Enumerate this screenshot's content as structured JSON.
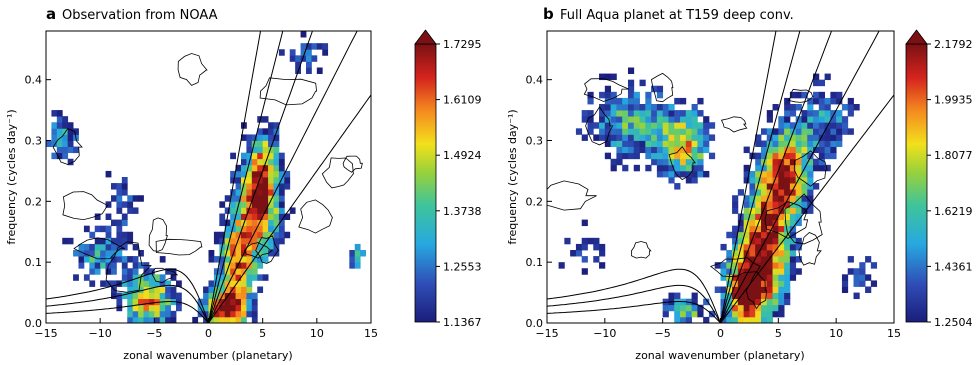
{
  "chart_data": [
    {
      "type": "heatmap",
      "panel_letter": "a",
      "title": "Observation from NOAA",
      "xlabel": "zonal wavenumber (planetary)",
      "ylabel": "frequency (cycles day⁻¹)",
      "xlim": [
        -15,
        15
      ],
      "ylim": [
        0,
        0.48
      ],
      "xticks": [
        -15,
        -10,
        -5,
        0,
        5,
        10,
        15
      ],
      "yticks": [
        0.0,
        0.1,
        0.2,
        0.3,
        0.4
      ],
      "colorbar": {
        "min": 1.1367,
        "max": 1.7295,
        "ticks": [
          "1.1367",
          "1.2553",
          "1.3738",
          "1.4924",
          "1.6109",
          "1.7295"
        ]
      },
      "features": [
        {
          "x": 4.5,
          "y": 0.19,
          "sx": 1.6,
          "sy": 0.06,
          "amp": 1.0
        },
        {
          "x": 5.2,
          "y": 0.27,
          "sx": 1.2,
          "sy": 0.05,
          "amp": 0.55
        },
        {
          "x": 2.5,
          "y": 0.09,
          "sx": 1.2,
          "sy": 0.05,
          "amp": 0.9
        },
        {
          "x": 1.5,
          "y": 0.02,
          "sx": 1.5,
          "sy": 0.025,
          "amp": 1.05
        },
        {
          "x": -5.5,
          "y": 0.04,
          "sx": 1.8,
          "sy": 0.035,
          "amp": 0.95
        },
        {
          "x": -10.5,
          "y": 0.11,
          "sx": 2.0,
          "sy": 0.03,
          "amp": 0.55
        },
        {
          "x": -13.5,
          "y": 0.31,
          "sx": 1.3,
          "sy": 0.04,
          "amp": 0.55
        },
        {
          "x": -8.0,
          "y": 0.2,
          "sx": 1.5,
          "sy": 0.05,
          "amp": 0.35
        },
        {
          "x": 13.7,
          "y": 0.11,
          "sx": 0.5,
          "sy": 0.012,
          "amp": 0.8
        },
        {
          "x": 9.0,
          "y": 0.44,
          "sx": 2.0,
          "sy": 0.03,
          "amp": 0.35
        }
      ]
    },
    {
      "type": "heatmap",
      "panel_letter": "b",
      "title": "Full Aqua planet at T159 deep conv.",
      "xlabel": "zonal wavenumber (planetary)",
      "ylabel": "frequency (cycles day⁻¹)",
      "xlim": [
        -15,
        15
      ],
      "ylim": [
        0,
        0.48
      ],
      "xticks": [
        -15,
        -10,
        -5,
        0,
        5,
        10,
        15
      ],
      "yticks": [
        0.0,
        0.1,
        0.2,
        0.3,
        0.4
      ],
      "colorbar": {
        "min": 1.2504,
        "max": 2.1792,
        "ticks": [
          "1.2504",
          "1.4361",
          "1.6219",
          "1.8077",
          "1.9935",
          "2.1792"
        ]
      },
      "features": [
        {
          "x": 4.0,
          "y": 0.14,
          "sx": 1.6,
          "sy": 0.09,
          "amp": 1.1
        },
        {
          "x": 6.0,
          "y": 0.25,
          "sx": 1.3,
          "sy": 0.05,
          "amp": 0.85
        },
        {
          "x": 2.0,
          "y": 0.05,
          "sx": 1.3,
          "sy": 0.05,
          "amp": 1.0
        },
        {
          "x": -3.0,
          "y": 0.29,
          "sx": 1.6,
          "sy": 0.04,
          "amp": 0.8
        },
        {
          "x": -8.0,
          "y": 0.33,
          "sx": 3.0,
          "sy": 0.05,
          "amp": 0.6
        },
        {
          "x": -3.0,
          "y": 0.02,
          "sx": 1.4,
          "sy": 0.02,
          "amp": 0.7
        },
        {
          "x": 9.0,
          "y": 0.33,
          "sx": 2.0,
          "sy": 0.05,
          "amp": 0.5
        },
        {
          "x": 12.0,
          "y": 0.08,
          "sx": 1.5,
          "sy": 0.03,
          "amp": 0.35
        },
        {
          "x": -12.0,
          "y": 0.12,
          "sx": 2.0,
          "sy": 0.04,
          "amp": 0.3
        }
      ]
    }
  ]
}
